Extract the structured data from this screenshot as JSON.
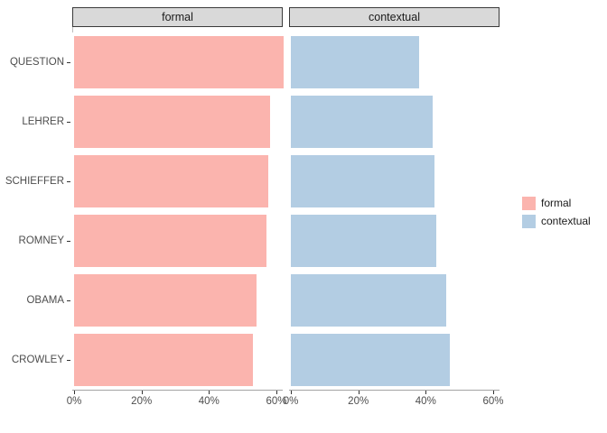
{
  "chart_data": {
    "type": "bar",
    "orientation": "horizontal",
    "title": "",
    "facets": [
      "formal",
      "contextual"
    ],
    "categories": [
      "QUESTION",
      "LEHRER",
      "SCHIEFFER",
      "ROMNEY",
      "OBAMA",
      "CROWLEY"
    ],
    "series": [
      {
        "name": "formal",
        "color": "#FBB4AE",
        "values": [
          62,
          58,
          57.5,
          57,
          54,
          53
        ]
      },
      {
        "name": "contextual",
        "color": "#B3CDE3",
        "values": [
          38,
          42,
          42.5,
          43,
          46,
          47
        ]
      }
    ],
    "value_unit": "%",
    "x_tick_labels": [
      "0%",
      "20%",
      "40%",
      "60%"
    ],
    "x_tick_values": [
      0,
      20,
      40,
      60
    ],
    "xlim": [
      0,
      62.5
    ],
    "grid": false,
    "legend": {
      "position": "right",
      "entries": [
        "formal",
        "contextual"
      ]
    }
  },
  "colors": {
    "strip_fill": "#D9D9D9",
    "strip_border": "#3A3A3A",
    "axis_line": "#A3A3A3",
    "tick": "#333333",
    "axis_text": "#4D4D4D",
    "strip_text": "#1A1A1A",
    "background": "#FFFFFF"
  }
}
